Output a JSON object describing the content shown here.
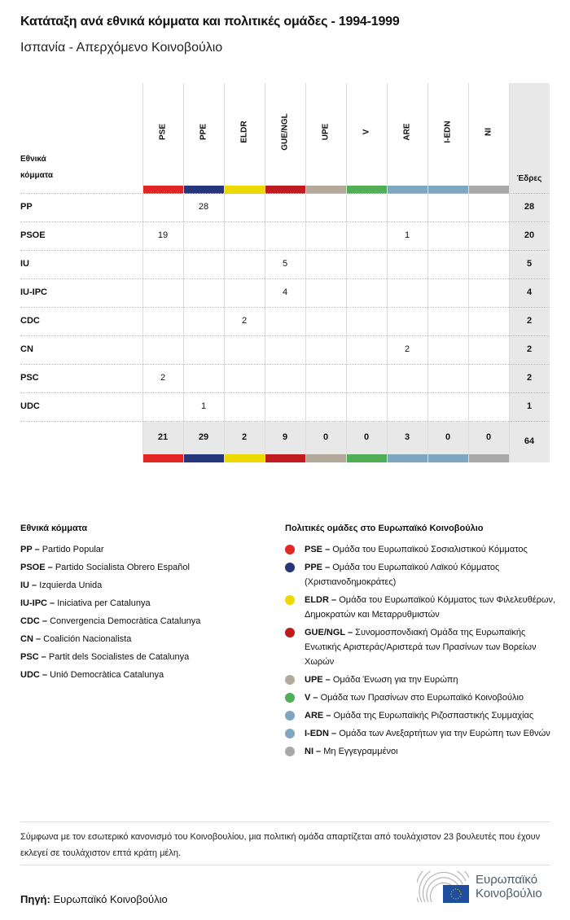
{
  "title": "Κατάταξη ανά εθνικά κόμματα και πολιτικές ομάδες - 1994-1999",
  "subtitle": "Ισπανία - Απερχόμενο Κοινοβούλιο",
  "table": {
    "row_header": "Εθνικά κόμματα",
    "seats_header": "Έδρες",
    "groups": [
      {
        "code": "PSE",
        "color": "#e42525"
      },
      {
        "code": "PPE",
        "color": "#27367c"
      },
      {
        "code": "ELDR",
        "color": "#ecd900"
      },
      {
        "code": "GUE/NGL",
        "color": "#c01b1f"
      },
      {
        "code": "UPE",
        "color": "#b4aa9c"
      },
      {
        "code": "V",
        "color": "#4fae56"
      },
      {
        "code": "ARE",
        "color": "#7fa8c0"
      },
      {
        "code": "I-EDN",
        "color": "#7fa8c0"
      },
      {
        "code": "NI",
        "color": "#a9a9a9"
      }
    ],
    "rows": [
      {
        "party": "PP",
        "values": [
          "",
          "28",
          "",
          "",
          "",
          "",
          "",
          "",
          ""
        ],
        "seats": "28"
      },
      {
        "party": "PSOE",
        "values": [
          "19",
          "",
          "",
          "",
          "",
          "",
          "1",
          "",
          ""
        ],
        "seats": "20"
      },
      {
        "party": "IU",
        "values": [
          "",
          "",
          "",
          "5",
          "",
          "",
          "",
          "",
          ""
        ],
        "seats": "5"
      },
      {
        "party": "IU-IPC",
        "values": [
          "",
          "",
          "",
          "4",
          "",
          "",
          "",
          "",
          ""
        ],
        "seats": "4"
      },
      {
        "party": "CDC",
        "values": [
          "",
          "",
          "2",
          "",
          "",
          "",
          "",
          "",
          ""
        ],
        "seats": "2"
      },
      {
        "party": "CN",
        "values": [
          "",
          "",
          "",
          "",
          "",
          "",
          "2",
          "",
          ""
        ],
        "seats": "2"
      },
      {
        "party": "PSC",
        "values": [
          "2",
          "",
          "",
          "",
          "",
          "",
          "",
          "",
          ""
        ],
        "seats": "2"
      },
      {
        "party": "UDC",
        "values": [
          "",
          "1",
          "",
          "",
          "",
          "",
          "",
          "",
          ""
        ],
        "seats": "1"
      }
    ],
    "totals": [
      "21",
      "29",
      "2",
      "9",
      "0",
      "0",
      "3",
      "0",
      "0"
    ],
    "total_seats": "64"
  },
  "national_legend": {
    "title": "Εθνικά κόμματα",
    "items": [
      {
        "code": "PP",
        "name": "Partido Popular"
      },
      {
        "code": "PSOE",
        "name": "Partido Socialista Obrero Español"
      },
      {
        "code": "IU",
        "name": "Izquierda Unida"
      },
      {
        "code": "IU-IPC",
        "name": "Iniciativa per Catalunya"
      },
      {
        "code": "CDC",
        "name": "Convergencia Democràtica Catalunya"
      },
      {
        "code": "CN",
        "name": "Coalición Nacionalista"
      },
      {
        "code": "PSC",
        "name": "Partit dels Socialistes de Catalunya"
      },
      {
        "code": "UDC",
        "name": "Unió Democràtica Catalunya"
      }
    ]
  },
  "group_legend": {
    "title": "Πολιτικές ομάδες στο Ευρωπαϊκό Κοινοβούλιο",
    "items": [
      {
        "code": "PSE",
        "name": "Ομάδα του Ευρωπαϊκού Σοσιαλιστικού Κόμματος"
      },
      {
        "code": "PPE",
        "name": "Ομάδα του Ευρωπαϊκού Λαϊκού Κόμματος (Χριστιανοδημοκράτες)"
      },
      {
        "code": "ELDR",
        "name": "Ομάδα του Ευρωπαϊκού Κόμματος των Φιλελευθέρων, Δημοκρατών και Μεταρρυθμιστών"
      },
      {
        "code": "GUE/NGL",
        "name": "Συνομοσπονδιακή Ομάδα της Ευρωπαϊκής Ενωτικής Αριστεράς/Αριστερά των Πρασίνων των Βορείων Χωρών"
      },
      {
        "code": "UPE",
        "name": "Ομάδα Ένωση για την Ευρώπη"
      },
      {
        "code": "V",
        "name": "Ομάδα των Πρασίνων στο Ευρωπαϊκό Κοινοβούλιο"
      },
      {
        "code": "ARE",
        "name": "Ομάδα της Ευρωπαϊκής Ριζοσπαστικής Συμμαχίας"
      },
      {
        "code": "I-EDN",
        "name": "Ομάδα των Ανεξαρτήτων για την Ευρώπη των Εθνών"
      },
      {
        "code": "NI",
        "name": "Μη Εγγεγραμμένοι"
      }
    ]
  },
  "note": "Σύμφωνα με τον εσωτερικό κανονισμό του Κοινοβουλίου, μια πολιτική ομάδα απαρτίζεται από τουλάχιστον 23 βουλευτές που έχουν εκλεγεί σε τουλάχιστον επτά κράτη μέλη.",
  "source_label": "Πηγή:",
  "source": "Ευρωπαϊκό Κοινοβούλιο",
  "logo_text": "Ευρωπαϊκό Κοινοβούλιο"
}
